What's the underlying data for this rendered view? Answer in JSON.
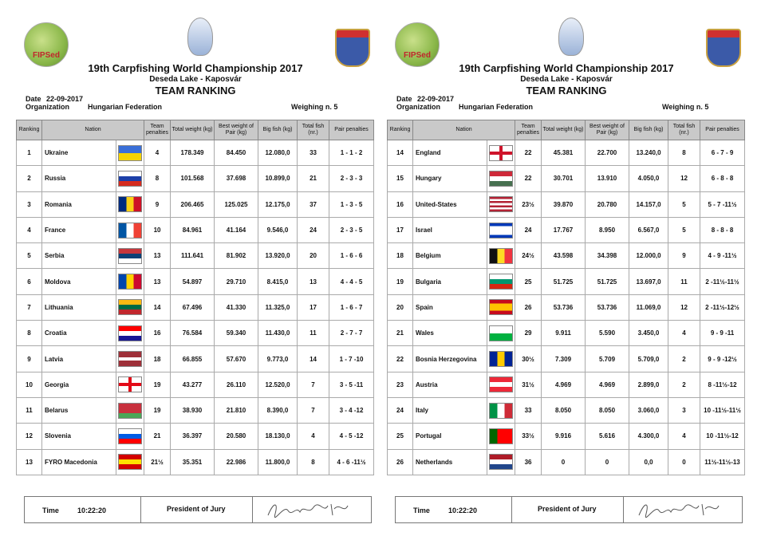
{
  "pages": [
    {
      "header": {
        "logo_text": "FIPSed",
        "title": "19th Carpfishing World Championship 2017",
        "subtitle": "Deseda Lake - Kaposvár",
        "heading": "TEAM RANKING",
        "date_label": "Date",
        "date": "22-09-2017",
        "organization_label": "Organization",
        "organization": "Hungarian Federation",
        "weighing": "Weighing n. 5"
      },
      "table": {
        "columns": [
          "Ranking",
          "Nation",
          "Team penalties",
          "Total weight (kg)",
          "Best weight of Pair (kg)",
          "Big fish (kg)",
          "Total fish (nr.)",
          "Pair penalties"
        ],
        "rows": [
          [
            "1",
            "Ukraine",
            "4",
            "178.349",
            "84.450",
            "12.080,0",
            "33",
            "1 - 1 - 2"
          ],
          [
            "2",
            "Russia",
            "8",
            "101.568",
            "37.698",
            "10.899,0",
            "21",
            "2 - 3 - 3"
          ],
          [
            "3",
            "Romania",
            "9",
            "206.465",
            "125.025",
            "12.175,0",
            "37",
            "1 - 3 - 5"
          ],
          [
            "4",
            "France",
            "10",
            "84.961",
            "41.164",
            "9.546,0",
            "24",
            "2 - 3 - 5"
          ],
          [
            "5",
            "Serbia",
            "13",
            "111.641",
            "81.902",
            "13.920,0",
            "20",
            "1 - 6 - 6"
          ],
          [
            "6",
            "Moldova",
            "13",
            "54.897",
            "29.710",
            "8.415,0",
            "13",
            "4 - 4 - 5"
          ],
          [
            "7",
            "Lithuania",
            "14",
            "67.496",
            "41.330",
            "11.325,0",
            "17",
            "1 - 6 - 7"
          ],
          [
            "8",
            "Croatia",
            "16",
            "76.584",
            "59.340",
            "11.430,0",
            "11",
            "2 - 7 - 7"
          ],
          [
            "9",
            "Latvia",
            "18",
            "66.855",
            "57.670",
            "9.773,0",
            "14",
            "1 - 7 -10"
          ],
          [
            "10",
            "Georgia",
            "19",
            "43.277",
            "26.110",
            "12.520,0",
            "7",
            "3 - 5 -11"
          ],
          [
            "11",
            "Belarus",
            "19",
            "38.930",
            "21.810",
            "8.390,0",
            "7",
            "3 - 4 -12"
          ],
          [
            "12",
            "Slovenia",
            "21",
            "36.397",
            "20.580",
            "18.130,0",
            "4",
            "4 - 5 -12"
          ],
          [
            "13",
            "FYRO Macedonia",
            "21½",
            "35.351",
            "22.986",
            "11.800,0",
            "8",
            "4 - 6 -11½"
          ]
        ]
      },
      "footer": {
        "time_label": "Time",
        "time": "10:22:20",
        "president": "President of Jury"
      }
    },
    {
      "header": {
        "logo_text": "FIPSed",
        "title": "19th Carpfishing World Championship 2017",
        "subtitle": "Deseda Lake - Kaposvár",
        "heading": "TEAM RANKING",
        "date_label": "Date",
        "date": "22-09-2017",
        "organization_label": "Organization",
        "organization": "Hungarian Federation",
        "weighing": "Weighing n. 5"
      },
      "table": {
        "columns": [
          "Ranking",
          "Nation",
          "Team penalties",
          "Total weight (kg)",
          "Best weight of Pair (kg)",
          "Big fish (kg)",
          "Total fish (nr.)",
          "Pair penalties"
        ],
        "rows": [
          [
            "14",
            "England",
            "22",
            "45.381",
            "22.700",
            "13.240,0",
            "8",
            "6 - 7 - 9"
          ],
          [
            "15",
            "Hungary",
            "22",
            "30.701",
            "13.910",
            "4.050,0",
            "12",
            "6 - 8 - 8"
          ],
          [
            "16",
            "United-States",
            "23½",
            "39.870",
            "20.780",
            "14.157,0",
            "5",
            "5 - 7 -11½"
          ],
          [
            "17",
            "Israel",
            "24",
            "17.767",
            "8.950",
            "6.567,0",
            "5",
            "8 - 8 - 8"
          ],
          [
            "18",
            "Belgium",
            "24½",
            "43.598",
            "34.398",
            "12.000,0",
            "9",
            "4 - 9 -11½"
          ],
          [
            "19",
            "Bulgaria",
            "25",
            "51.725",
            "51.725",
            "13.697,0",
            "11",
            "2 -11½-11½"
          ],
          [
            "20",
            "Spain",
            "26",
            "53.736",
            "53.736",
            "11.069,0",
            "12",
            "2 -11½-12½"
          ],
          [
            "21",
            "Wales",
            "29",
            "9.911",
            "5.590",
            "3.450,0",
            "4",
            "9 - 9 -11"
          ],
          [
            "22",
            "Bosnia Herzegovina",
            "30½",
            "7.309",
            "5.709",
            "5.709,0",
            "2",
            "9 - 9 -12½"
          ],
          [
            "23",
            "Austria",
            "31½",
            "4.969",
            "4.969",
            "2.899,0",
            "2",
            "8 -11½-12"
          ],
          [
            "24",
            "Italy",
            "33",
            "8.050",
            "8.050",
            "3.060,0",
            "3",
            "10 -11½-11½"
          ],
          [
            "25",
            "Portugal",
            "33½",
            "9.916",
            "5.616",
            "4.300,0",
            "4",
            "10 -11½-12"
          ],
          [
            "26",
            "Netherlands",
            "36",
            "0",
            "0",
            "0,0",
            "0",
            "11½-11½-13"
          ]
        ]
      },
      "footer": {
        "time_label": "Time",
        "time": "10:22:20",
        "president": "President of Jury"
      }
    }
  ]
}
